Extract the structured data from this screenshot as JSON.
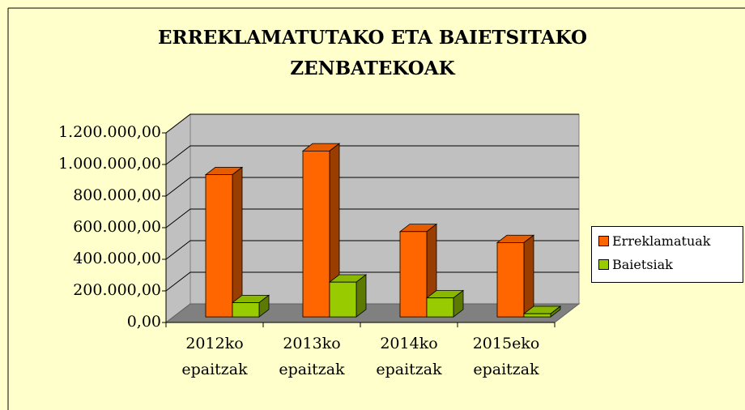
{
  "chart_data": {
    "type": "bar3d",
    "title": "ERREKLAMATUTAKO ETA BAIETSITAKO ZENBATEKOAK",
    "categories": [
      "2012ko epaitzak",
      "2013ko epaitzak",
      "2014ko epaitzak",
      "2015eko epaitzak"
    ],
    "series": [
      {
        "name": "Erreklamatuak",
        "color": "#ff6600",
        "values": [
          900000,
          1050000,
          540000,
          470000
        ]
      },
      {
        "name": "Baietsiak",
        "color": "#99cc00",
        "values": [
          90000,
          220000,
          120000,
          20000
        ]
      }
    ],
    "ylim": [
      0,
      1200000
    ],
    "yticks": [
      {
        "value": 0,
        "label": "0,00"
      },
      {
        "value": 200000,
        "label": "200.000,00"
      },
      {
        "value": 400000,
        "label": "400.000,00"
      },
      {
        "value": 600000,
        "label": "600.000,00"
      },
      {
        "value": 800000,
        "label": "800.000,00"
      },
      {
        "value": 1000000,
        "label": "1.000.000,00"
      },
      {
        "value": 1200000,
        "label": "1.200.000,00"
      }
    ],
    "grid": true,
    "legend": "right"
  }
}
